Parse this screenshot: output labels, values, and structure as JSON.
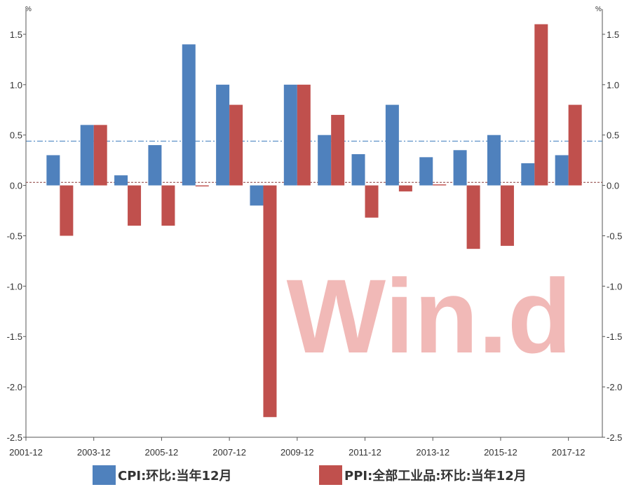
{
  "chart_data": {
    "type": "bar",
    "categories": [
      "2002-12",
      "2003-12",
      "2004-12",
      "2005-12",
      "2006-12",
      "2007-12",
      "2008-12",
      "2009-12",
      "2010-12",
      "2011-12",
      "2012-12",
      "2013-12",
      "2014-12",
      "2015-12",
      "2016-12",
      "2017-12"
    ],
    "series": [
      {
        "name": "CPI:环比:当年12月",
        "color": "#4f81bd",
        "values": [
          0.3,
          0.6,
          0.1,
          0.4,
          1.4,
          1.0,
          -0.2,
          1.0,
          0.5,
          0.31,
          0.8,
          0.28,
          0.35,
          0.5,
          0.22,
          0.3
        ]
      },
      {
        "name": "PPI:全部工业品:环比:当年12月",
        "color": "#c0504d",
        "values": [
          -0.5,
          0.6,
          -0.4,
          -0.4,
          -0.01,
          0.8,
          -2.3,
          1.0,
          0.7,
          -0.32,
          -0.06,
          0.01,
          -0.63,
          -0.6,
          1.6,
          0.8
        ]
      }
    ],
    "x_tick_labels": [
      "2001-12",
      "2003-12",
      "2005-12",
      "2007-12",
      "2009-12",
      "2011-12",
      "2013-12",
      "2015-12",
      "2017-12"
    ],
    "y_ticks": [
      "1.5",
      "1.0",
      "0.5",
      "0.0",
      "-0.5",
      "-1.0",
      "-1.5",
      "-2.0",
      "-2.5"
    ],
    "y_unit_left": "%",
    "y_unit_right": "%",
    "ylim": [
      -2.5,
      1.75
    ],
    "reference_lines": [
      {
        "value": 0.44,
        "style": "dash-dot",
        "color": "#4f81bd"
      },
      {
        "value": 0.03,
        "style": "dashed",
        "color": "#c0504d"
      }
    ],
    "watermark": "Win.d",
    "legend_position": "bottom"
  }
}
